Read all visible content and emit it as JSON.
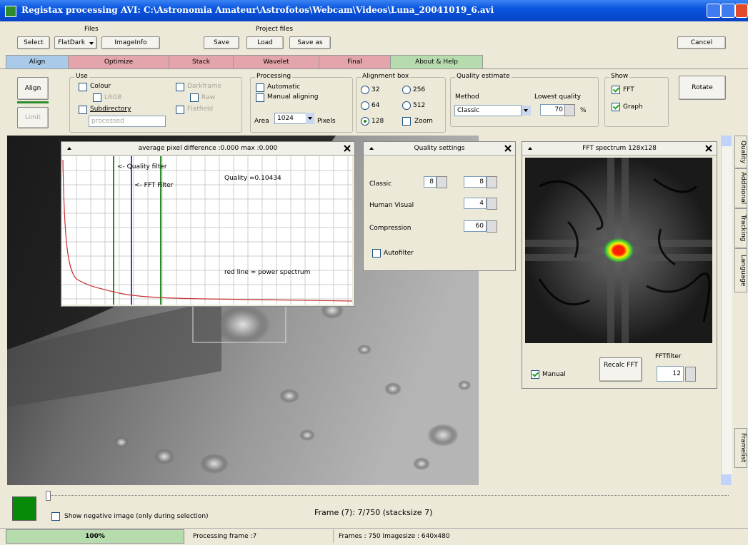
{
  "window": {
    "title": "Registax processing AVI: C:\\Astronomia Amateur\\Astrofotos\\Webcam\\Videos\\Luna_20041019_6.avi",
    "cancel": "Cancel"
  },
  "toolbar": {
    "files_label": "Files",
    "select": "Select",
    "flatdark": "FlatDark",
    "imageinfo": "ImageInfo",
    "save": "Save",
    "project_files_label": "Project files",
    "load": "Load",
    "save_as": "Save as"
  },
  "tabs": [
    "Align",
    "Optimize",
    "Stack",
    "Wavelet",
    "Final",
    "About & Help"
  ],
  "align_panel": {
    "align": "Align",
    "limit": "Limit",
    "use": {
      "label": "Use",
      "colour": "Colour",
      "lrgb": "LRGB",
      "subdirectory": "Subdirectory",
      "folder": "processed",
      "darkframe": "Darkframe",
      "raw": "Raw",
      "flatfield": "Flatfield"
    },
    "processing": {
      "label": "Processing",
      "automatic": "Automatic",
      "manual": "Manual aligning",
      "area": "Area",
      "area_value": "1024",
      "pixels": "Pixels"
    },
    "alignment_box": {
      "label": "Alignment box",
      "sizes": [
        "32",
        "256",
        "64",
        "512",
        "128"
      ],
      "zoom": "Zoom"
    },
    "quality_estimate": {
      "label": "Quality estimate",
      "method": "Method",
      "lowest": "Lowest quality",
      "method_value": "Classic",
      "lowest_value": "70",
      "unit": "%"
    },
    "show": {
      "label": "Show",
      "fft": "FFT",
      "graph": "Graph"
    },
    "rotate": "Rotate"
  },
  "graph_window": {
    "title": "average pixel difference :0.000 max :0.000",
    "quality_filter": "<- Quality filter",
    "fft_filter": "<- FFT Filter",
    "quality": "Quality =0.10434",
    "legend": "red line = power spectrum"
  },
  "quality_settings": {
    "title": "Quality settings",
    "classic": "Classic",
    "classic_a": "8",
    "classic_b": "8",
    "human_visual": "Human Visual",
    "human_visual_value": "4",
    "compression": "Compression",
    "compression_value": "60",
    "autofilter": "Autofilter"
  },
  "fft_window": {
    "title": "FFT spectrum 128x128",
    "manual": "Manual",
    "recalc": "Recalc FFT",
    "fftfilter": "FFTfilter",
    "fftfilter_value": "12"
  },
  "side_tabs": [
    "Quality",
    "Additional",
    "Tracking",
    "Language",
    "Framelist"
  ],
  "bottom": {
    "negative": "Show negative image (only during selection)",
    "frame": "Frame (7): 7/750 (stacksize 7)"
  },
  "status": {
    "progress": "100%",
    "processing": "Processing frame :7",
    "frames": "Frames : 750 Imagesize : 640x480"
  }
}
